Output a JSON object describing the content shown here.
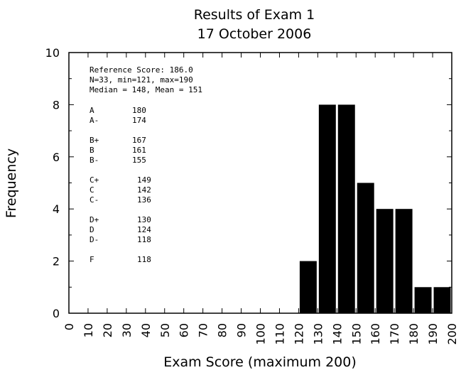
{
  "chart_data": {
    "type": "bar",
    "title": "Results of Exam 1",
    "subtitle": "17 October 2006",
    "xlabel": "Exam Score (maximum 200)",
    "ylabel": "Frequency",
    "xlim": [
      0,
      200
    ],
    "ylim": [
      0,
      10
    ],
    "x_ticks": [
      "0",
      "10",
      "20",
      "30",
      "40",
      "50",
      "60",
      "70",
      "80",
      "90",
      "100",
      "110",
      "120",
      "130",
      "140",
      "150",
      "160",
      "170",
      "180",
      "190",
      "200"
    ],
    "y_ticks": [
      "0",
      "2",
      "4",
      "6",
      "8",
      "10"
    ],
    "bin_width": 10,
    "bins": [
      {
        "start": 120,
        "count": 2
      },
      {
        "start": 130,
        "count": 8
      },
      {
        "start": 140,
        "count": 8
      },
      {
        "start": 150,
        "count": 5
      },
      {
        "start": 160,
        "count": 4
      },
      {
        "start": 170,
        "count": 4
      },
      {
        "start": 180,
        "count": 1
      },
      {
        "start": 190,
        "count": 1
      }
    ],
    "grid": false,
    "bar_color": "#000000",
    "stats_lines": [
      "Reference Score: 186.0",
      "N=33, min=121, max=190",
      "Median = 148, Mean = 151"
    ],
    "grade_cutoffs": [
      {
        "grade": "A",
        "score": "180"
      },
      {
        "grade": "A-",
        "score": "174"
      },
      {
        "grade": "B+",
        "score": "167"
      },
      {
        "grade": "B",
        "score": "161"
      },
      {
        "grade": "B-",
        "score": "155"
      },
      {
        "grade": "C+",
        "score": "149"
      },
      {
        "grade": "C",
        "score": "142"
      },
      {
        "grade": "C-",
        "score": "136"
      },
      {
        "grade": "D+",
        "score": "130"
      },
      {
        "grade": "D",
        "score": "124"
      },
      {
        "grade": "D-",
        "score": "118"
      },
      {
        "grade": "F",
        "score": "118"
      }
    ]
  }
}
